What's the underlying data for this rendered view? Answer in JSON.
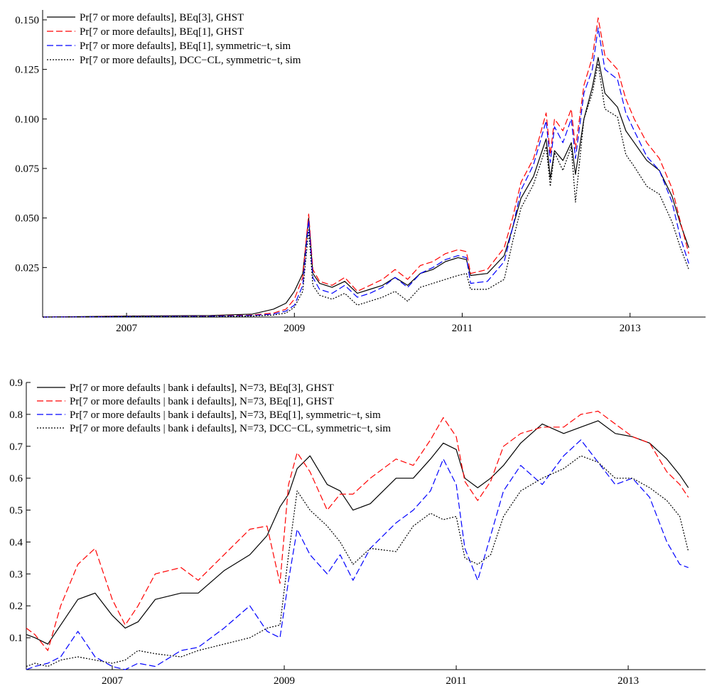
{
  "chart_data": [
    {
      "type": "line",
      "title": "",
      "xlabel": "",
      "ylabel": "",
      "xlim": [
        2006.0,
        2013.9
      ],
      "ylim": [
        0.0,
        0.155
      ],
      "xticks": [
        2007,
        2009,
        2011,
        2013
      ],
      "xtick_labels": [
        "2007",
        "2009",
        "2011",
        "2013"
      ],
      "yticks": [
        0.025,
        0.05,
        0.075,
        0.1,
        0.125,
        0.15
      ],
      "ytick_labels": [
        "0.025",
        "0.050",
        "0.075",
        "0.100",
        "0.125",
        "0.150"
      ],
      "grid": false,
      "legend_position": "top-left",
      "series": [
        {
          "name": "Pr[7 or more defaults], BEq[3], GHST",
          "color": "#000000",
          "dash": "solid",
          "x": [
            2006.0,
            2007.0,
            2008.0,
            2008.5,
            2008.75,
            2008.9,
            2009.0,
            2009.1,
            2009.17,
            2009.22,
            2009.3,
            2009.45,
            2009.6,
            2009.75,
            2009.9,
            2010.05,
            2010.2,
            2010.35,
            2010.5,
            2010.65,
            2010.8,
            2010.95,
            2011.05,
            2011.1,
            2011.3,
            2011.5,
            2011.6,
            2011.7,
            2011.85,
            2012.0,
            2012.05,
            2012.1,
            2012.2,
            2012.3,
            2012.35,
            2012.45,
            2012.55,
            2012.62,
            2012.7,
            2012.85,
            2012.95,
            2013.05,
            2013.2,
            2013.35,
            2013.5,
            2013.6,
            2013.7
          ],
          "y": [
            0.0,
            0.0005,
            0.0008,
            0.0015,
            0.004,
            0.007,
            0.013,
            0.022,
            0.05,
            0.022,
            0.017,
            0.015,
            0.018,
            0.012,
            0.014,
            0.016,
            0.02,
            0.016,
            0.022,
            0.024,
            0.028,
            0.03,
            0.029,
            0.021,
            0.022,
            0.031,
            0.045,
            0.06,
            0.071,
            0.09,
            0.07,
            0.084,
            0.079,
            0.088,
            0.072,
            0.1,
            0.116,
            0.131,
            0.113,
            0.106,
            0.094,
            0.088,
            0.079,
            0.074,
            0.061,
            0.047,
            0.035
          ]
        },
        {
          "name": "Pr[7 or more defaults], BEq[1], GHST",
          "color": "#ff0000",
          "dash": "dashed",
          "x": [
            2006.0,
            2007.0,
            2008.0,
            2008.5,
            2008.75,
            2008.9,
            2009.0,
            2009.1,
            2009.17,
            2009.22,
            2009.3,
            2009.45,
            2009.6,
            2009.75,
            2009.9,
            2010.05,
            2010.2,
            2010.35,
            2010.5,
            2010.65,
            2010.8,
            2010.95,
            2011.05,
            2011.1,
            2011.3,
            2011.5,
            2011.6,
            2011.7,
            2011.85,
            2012.0,
            2012.05,
            2012.1,
            2012.2,
            2012.3,
            2012.35,
            2012.45,
            2012.55,
            2012.62,
            2012.7,
            2012.85,
            2012.95,
            2013.05,
            2013.2,
            2013.35,
            2013.5,
            2013.6,
            2013.7
          ],
          "y": [
            0.0,
            0.0003,
            0.0005,
            0.001,
            0.002,
            0.004,
            0.009,
            0.02,
            0.052,
            0.024,
            0.018,
            0.016,
            0.02,
            0.013,
            0.016,
            0.019,
            0.024,
            0.019,
            0.026,
            0.028,
            0.032,
            0.034,
            0.033,
            0.022,
            0.024,
            0.035,
            0.05,
            0.068,
            0.08,
            0.103,
            0.082,
            0.1,
            0.094,
            0.105,
            0.085,
            0.117,
            0.131,
            0.151,
            0.132,
            0.125,
            0.11,
            0.1,
            0.088,
            0.08,
            0.065,
            0.048,
            0.032
          ]
        },
        {
          "name": "Pr[7 or more defaults], BEq[1], symmetric−t, sim",
          "color": "#0000ff",
          "dash": "dashed",
          "x": [
            2006.0,
            2007.0,
            2008.0,
            2008.5,
            2008.75,
            2008.9,
            2009.0,
            2009.1,
            2009.17,
            2009.22,
            2009.3,
            2009.45,
            2009.6,
            2009.75,
            2009.9,
            2010.05,
            2010.2,
            2010.35,
            2010.5,
            2010.65,
            2010.8,
            2010.95,
            2011.05,
            2011.1,
            2011.3,
            2011.5,
            2011.6,
            2011.7,
            2011.85,
            2012.0,
            2012.05,
            2012.1,
            2012.2,
            2012.3,
            2012.35,
            2012.45,
            2012.55,
            2012.62,
            2012.7,
            2012.85,
            2012.95,
            2013.05,
            2013.2,
            2013.35,
            2013.5,
            2013.6,
            2013.7
          ],
          "y": [
            0.0,
            0.0002,
            0.0004,
            0.0008,
            0.0015,
            0.003,
            0.006,
            0.016,
            0.049,
            0.02,
            0.014,
            0.012,
            0.016,
            0.01,
            0.012,
            0.015,
            0.02,
            0.015,
            0.022,
            0.025,
            0.029,
            0.031,
            0.03,
            0.017,
            0.018,
            0.028,
            0.045,
            0.064,
            0.077,
            0.099,
            0.078,
            0.096,
            0.088,
            0.1,
            0.08,
            0.113,
            0.125,
            0.146,
            0.125,
            0.12,
            0.103,
            0.094,
            0.081,
            0.074,
            0.058,
            0.04,
            0.027
          ]
        },
        {
          "name": "Pr[7 or more defaults], DCC−CL, symmetric−t, sim",
          "color": "#000000",
          "dash": "dotted",
          "x": [
            2006.0,
            2007.0,
            2008.0,
            2008.5,
            2008.75,
            2008.9,
            2009.0,
            2009.1,
            2009.17,
            2009.22,
            2009.3,
            2009.45,
            2009.6,
            2009.75,
            2009.9,
            2010.05,
            2010.2,
            2010.35,
            2010.5,
            2010.65,
            2010.8,
            2010.95,
            2011.05,
            2011.1,
            2011.3,
            2011.5,
            2011.6,
            2011.7,
            2011.85,
            2012.0,
            2012.05,
            2012.1,
            2012.2,
            2012.3,
            2012.35,
            2012.45,
            2012.55,
            2012.62,
            2012.7,
            2012.85,
            2012.95,
            2013.05,
            2013.2,
            2013.35,
            2013.5,
            2013.6,
            2013.7
          ],
          "y": [
            0.0,
            0.0001,
            0.0002,
            0.0005,
            0.001,
            0.002,
            0.005,
            0.013,
            0.044,
            0.016,
            0.011,
            0.009,
            0.012,
            0.006,
            0.008,
            0.01,
            0.013,
            0.008,
            0.015,
            0.017,
            0.019,
            0.021,
            0.022,
            0.014,
            0.014,
            0.019,
            0.038,
            0.055,
            0.067,
            0.086,
            0.066,
            0.083,
            0.074,
            0.086,
            0.058,
            0.1,
            0.113,
            0.128,
            0.105,
            0.101,
            0.082,
            0.076,
            0.066,
            0.062,
            0.048,
            0.035,
            0.024
          ]
        }
      ]
    },
    {
      "type": "line",
      "title": "",
      "xlabel": "",
      "ylabel": "",
      "xlim": [
        2006.0,
        2013.9
      ],
      "ylim": [
        0.0,
        0.9
      ],
      "xticks": [
        2007,
        2009,
        2011,
        2013
      ],
      "xtick_labels": [
        "2007",
        "2009",
        "2011",
        "2013"
      ],
      "yticks": [
        0.1,
        0.2,
        0.3,
        0.4,
        0.5,
        0.6,
        0.7,
        0.8,
        0.9
      ],
      "ytick_labels": [
        "0.1",
        "0.2",
        "0.3",
        "0.4",
        "0.5",
        "0.6",
        "0.7",
        "0.8",
        "0.9"
      ],
      "grid": false,
      "legend_position": "top-left",
      "series": [
        {
          "name": "Pr[7 or more defaults | bank i defaults], N=73, BEq[3], GHST",
          "color": "#000000",
          "dash": "solid",
          "x": [
            2006.0,
            2006.1,
            2006.25,
            2006.4,
            2006.6,
            2006.8,
            2007.0,
            2007.15,
            2007.3,
            2007.5,
            2007.8,
            2008.0,
            2008.3,
            2008.6,
            2008.8,
            2008.95,
            2009.05,
            2009.15,
            2009.3,
            2009.5,
            2009.65,
            2009.8,
            2010.0,
            2010.3,
            2010.5,
            2010.7,
            2010.85,
            2011.0,
            2011.1,
            2011.25,
            2011.4,
            2011.55,
            2011.75,
            2012.0,
            2012.25,
            2012.45,
            2012.65,
            2012.85,
            2013.05,
            2013.25,
            2013.45,
            2013.6,
            2013.7
          ],
          "y": [
            0.11,
            0.1,
            0.08,
            0.14,
            0.22,
            0.24,
            0.17,
            0.13,
            0.15,
            0.22,
            0.24,
            0.24,
            0.31,
            0.36,
            0.42,
            0.51,
            0.55,
            0.63,
            0.67,
            0.58,
            0.56,
            0.5,
            0.52,
            0.6,
            0.6,
            0.66,
            0.71,
            0.69,
            0.6,
            0.57,
            0.6,
            0.64,
            0.71,
            0.77,
            0.74,
            0.76,
            0.78,
            0.74,
            0.73,
            0.71,
            0.66,
            0.61,
            0.57
          ]
        },
        {
          "name": "Pr[7 or more defaults | bank i defaults], N=73, BEq[1], GHST",
          "color": "#ff0000",
          "dash": "dashed",
          "x": [
            2006.0,
            2006.1,
            2006.25,
            2006.4,
            2006.6,
            2006.8,
            2007.0,
            2007.15,
            2007.3,
            2007.5,
            2007.8,
            2008.0,
            2008.3,
            2008.6,
            2008.8,
            2008.95,
            2009.05,
            2009.15,
            2009.3,
            2009.5,
            2009.65,
            2009.8,
            2010.0,
            2010.3,
            2010.5,
            2010.7,
            2010.85,
            2011.0,
            2011.1,
            2011.25,
            2011.4,
            2011.55,
            2011.75,
            2012.0,
            2012.25,
            2012.45,
            2012.65,
            2012.85,
            2013.05,
            2013.25,
            2013.45,
            2013.6,
            2013.7
          ],
          "y": [
            0.13,
            0.11,
            0.06,
            0.2,
            0.33,
            0.38,
            0.22,
            0.14,
            0.2,
            0.3,
            0.32,
            0.28,
            0.36,
            0.44,
            0.45,
            0.27,
            0.58,
            0.68,
            0.62,
            0.5,
            0.55,
            0.55,
            0.6,
            0.66,
            0.64,
            0.72,
            0.79,
            0.73,
            0.59,
            0.53,
            0.59,
            0.7,
            0.74,
            0.76,
            0.76,
            0.8,
            0.81,
            0.77,
            0.73,
            0.71,
            0.62,
            0.58,
            0.54
          ]
        },
        {
          "name": "Pr[7 or more defaults | bank i defaults], N=73, BEq[1], symmetric−t, sim",
          "color": "#0000ff",
          "dash": "dashed",
          "x": [
            2006.0,
            2006.1,
            2006.25,
            2006.4,
            2006.6,
            2006.8,
            2007.0,
            2007.15,
            2007.3,
            2007.5,
            2007.8,
            2008.0,
            2008.3,
            2008.6,
            2008.8,
            2008.95,
            2009.05,
            2009.15,
            2009.3,
            2009.5,
            2009.65,
            2009.8,
            2010.0,
            2010.3,
            2010.5,
            2010.7,
            2010.85,
            2011.0,
            2011.1,
            2011.25,
            2011.4,
            2011.55,
            2011.75,
            2012.0,
            2012.25,
            2012.45,
            2012.65,
            2012.85,
            2013.05,
            2013.25,
            2013.45,
            2013.6,
            2013.7
          ],
          "y": [
            0.0,
            0.01,
            0.02,
            0.04,
            0.12,
            0.04,
            0.01,
            0.0,
            0.02,
            0.01,
            0.06,
            0.07,
            0.13,
            0.2,
            0.12,
            0.1,
            0.28,
            0.44,
            0.36,
            0.3,
            0.36,
            0.28,
            0.38,
            0.46,
            0.5,
            0.56,
            0.66,
            0.58,
            0.38,
            0.28,
            0.42,
            0.56,
            0.64,
            0.58,
            0.67,
            0.72,
            0.65,
            0.58,
            0.6,
            0.54,
            0.4,
            0.33,
            0.32
          ]
        },
        {
          "name": "Pr[7 or more defaults | bank i defaults], N=73, DCC−CL, symmetric−t, sim",
          "color": "#000000",
          "dash": "dotted",
          "x": [
            2006.0,
            2006.1,
            2006.25,
            2006.4,
            2006.6,
            2006.8,
            2007.0,
            2007.15,
            2007.3,
            2007.5,
            2007.8,
            2008.0,
            2008.3,
            2008.6,
            2008.8,
            2008.95,
            2009.05,
            2009.15,
            2009.3,
            2009.5,
            2009.65,
            2009.8,
            2010.0,
            2010.3,
            2010.5,
            2010.7,
            2010.85,
            2011.0,
            2011.1,
            2011.25,
            2011.4,
            2011.55,
            2011.75,
            2012.0,
            2012.25,
            2012.45,
            2012.65,
            2012.85,
            2013.05,
            2013.25,
            2013.45,
            2013.6,
            2013.7
          ],
          "y": [
            0.01,
            0.02,
            0.01,
            0.03,
            0.04,
            0.03,
            0.02,
            0.03,
            0.06,
            0.05,
            0.04,
            0.06,
            0.08,
            0.1,
            0.13,
            0.14,
            0.36,
            0.56,
            0.5,
            0.45,
            0.4,
            0.33,
            0.38,
            0.37,
            0.45,
            0.49,
            0.47,
            0.48,
            0.35,
            0.33,
            0.36,
            0.48,
            0.56,
            0.6,
            0.63,
            0.67,
            0.65,
            0.6,
            0.6,
            0.57,
            0.53,
            0.48,
            0.37
          ]
        }
      ]
    }
  ]
}
